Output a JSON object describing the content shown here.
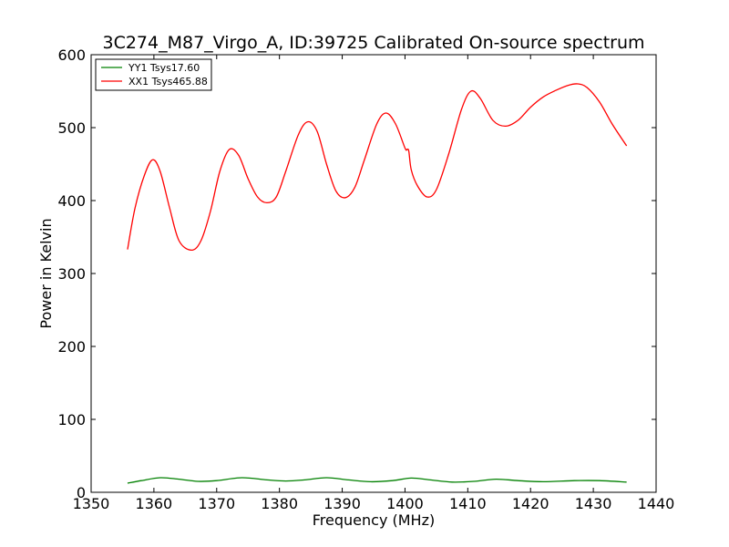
{
  "chart_data": {
    "type": "line",
    "title": "3C274_M87_Virgo_A, ID:39725 Calibrated On-source spectrum",
    "xlabel": "Frequency (MHz)",
    "ylabel": "Power in Kelvin",
    "xlim": [
      1350,
      1440
    ],
    "ylim": [
      0,
      600
    ],
    "xticks": [
      1350,
      1360,
      1370,
      1380,
      1390,
      1400,
      1410,
      1420,
      1430,
      1440
    ],
    "yticks": [
      0,
      100,
      200,
      300,
      400,
      500,
      600
    ],
    "grid": false,
    "legend_position": "top-left",
    "series": [
      {
        "name": "YY1 Tsys17.60",
        "color": "#008000",
        "x": [
          1355.8,
          1358,
          1361,
          1364,
          1367,
          1370,
          1374,
          1378,
          1381,
          1384,
          1387.5,
          1391,
          1394.5,
          1398,
          1401,
          1404,
          1407.5,
          1411,
          1414.5,
          1418,
          1422,
          1427,
          1431,
          1435.3
        ],
        "y": [
          12.5,
          16,
          20,
          18,
          15,
          16,
          20,
          17,
          15.5,
          17,
          20,
          17,
          14.5,
          16,
          19.5,
          17,
          14,
          15,
          18,
          16,
          14.5,
          16,
          16,
          14
        ]
      },
      {
        "name": "XX1 Tsys465.88",
        "color": "#ff0000",
        "x": [
          1355.8,
          1357,
          1358.5,
          1359.8,
          1361,
          1362.5,
          1364,
          1366,
          1367.5,
          1369,
          1370.5,
          1372,
          1373.5,
          1375,
          1376.5,
          1378,
          1379.5,
          1381,
          1383,
          1384.5,
          1386,
          1387.5,
          1389,
          1390.5,
          1392,
          1393.5,
          1395.5,
          1397,
          1398.5,
          1400,
          1400.3,
          1400.6,
          1401,
          1402,
          1403.5,
          1405,
          1407,
          1409,
          1410.5,
          1412,
          1414,
          1416,
          1418,
          1420,
          1422,
          1424,
          1426,
          1427.5,
          1429,
          1431,
          1433,
          1435.3
        ],
        "y": [
          333,
          390,
          435,
          456,
          440,
          390,
          345,
          332,
          345,
          385,
          440,
          470,
          462,
          430,
          405,
          397,
          405,
          440,
          490,
          508,
          495,
          450,
          413,
          404,
          418,
          455,
          505,
          520,
          505,
          472,
          470,
          468,
          442,
          420,
          405,
          415,
          465,
          525,
          550,
          540,
          510,
          502,
          510,
          528,
          542,
          551,
          558,
          560,
          555,
          535,
          505,
          475
        ]
      }
    ]
  }
}
